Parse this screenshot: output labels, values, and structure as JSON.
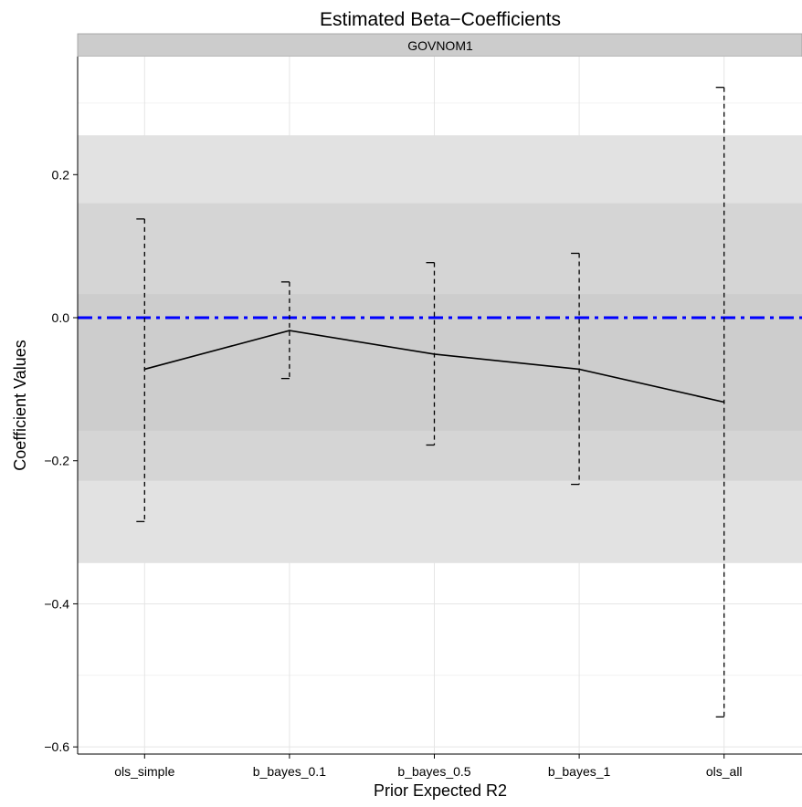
{
  "chart_data": {
    "type": "line",
    "title": "Estimated Beta−Coefficients",
    "facet": "GOVNOM1",
    "xlabel": "Prior Expected R2",
    "ylabel": "Coefficient Values",
    "categories": [
      "ols_simple",
      "b_bayes_0.1",
      "b_bayes_0.5",
      "b_bayes_1",
      "ols_all"
    ],
    "ylim": [
      -0.61,
      0.365
    ],
    "yticks": [
      -0.6,
      -0.4,
      -0.2,
      0.0,
      0.2
    ],
    "ytick_labels": [
      "−0.6",
      "−0.4",
      "−0.2",
      "0.0",
      "0.2"
    ],
    "series": [
      {
        "values": [
          -0.072,
          -0.018,
          -0.051,
          -0.072,
          -0.118
        ]
      }
    ],
    "intervals": [
      {
        "lower": -0.285,
        "upper": 0.138
      },
      {
        "lower": -0.085,
        "upper": 0.05
      },
      {
        "lower": -0.178,
        "upper": 0.077
      },
      {
        "lower": -0.233,
        "upper": 0.09
      },
      {
        "lower": -0.558,
        "upper": 0.322
      }
    ],
    "bands": [
      {
        "lower": -0.343,
        "upper": 0.255,
        "color": "#e2e2e2"
      },
      {
        "lower": -0.228,
        "upper": 0.16,
        "color": "#d5d5d5"
      },
      {
        "lower": -0.158,
        "upper": 0.033,
        "color": "#cdcdcd"
      }
    ],
    "reference_line": {
      "y": 0.0,
      "color": "#0000ff",
      "style": "dash-dot"
    },
    "grid": true,
    "legend": "none"
  }
}
